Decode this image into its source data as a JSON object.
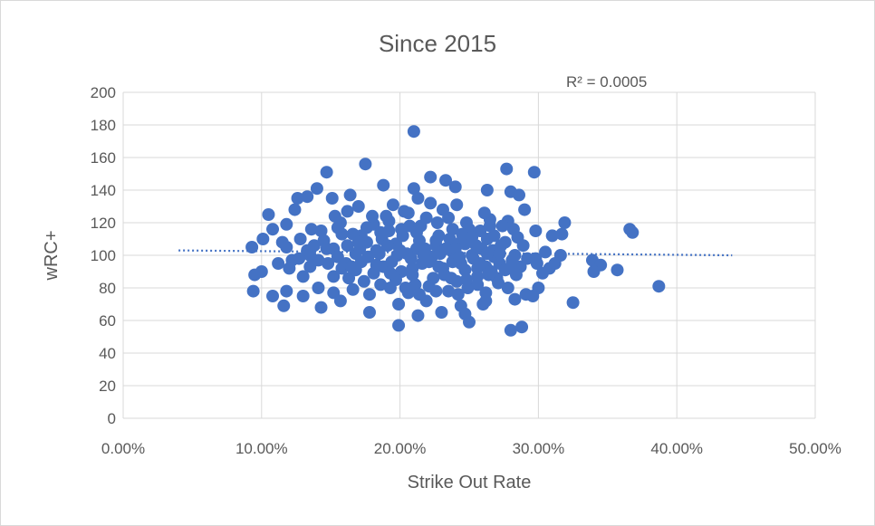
{
  "chart_data": {
    "type": "scatter",
    "title": "Since 2015",
    "xlabel": "Strike Out Rate",
    "ylabel": "wRC+",
    "xlim": [
      0,
      0.5
    ],
    "ylim": [
      0,
      200
    ],
    "x_ticks": [
      0,
      0.1,
      0.2,
      0.3,
      0.4,
      0.5
    ],
    "x_tick_labels": [
      "0.00%",
      "10.00%",
      "20.00%",
      "30.00%",
      "40.00%",
      "50.00%"
    ],
    "y_ticks": [
      0,
      20,
      40,
      60,
      80,
      100,
      120,
      140,
      160,
      180,
      200
    ],
    "y_tick_labels": [
      "0",
      "20",
      "40",
      "60",
      "80",
      "100",
      "120",
      "140",
      "160",
      "180",
      "200"
    ],
    "grid": true,
    "legend": "none",
    "color": "#4472c4",
    "annotation": "R² = 0.0005",
    "trendline": {
      "type": "linear",
      "x": [
        0.04,
        0.44
      ],
      "y": [
        103,
        100
      ]
    },
    "series": [
      {
        "points": [
          [
            0.21,
            176
          ],
          [
            0.175,
            156
          ],
          [
            0.147,
            151
          ],
          [
            0.277,
            153
          ],
          [
            0.297,
            151
          ],
          [
            0.222,
            148
          ],
          [
            0.188,
            143
          ],
          [
            0.24,
            142
          ],
          [
            0.21,
            141
          ],
          [
            0.263,
            140
          ],
          [
            0.28,
            139
          ],
          [
            0.14,
            141
          ],
          [
            0.164,
            137
          ],
          [
            0.233,
            146
          ],
          [
            0.286,
            137
          ],
          [
            0.17,
            130
          ],
          [
            0.126,
            135
          ],
          [
            0.151,
            135
          ],
          [
            0.133,
            136
          ],
          [
            0.213,
            135
          ],
          [
            0.162,
            127
          ],
          [
            0.29,
            128
          ],
          [
            0.124,
            128
          ],
          [
            0.153,
            124
          ],
          [
            0.105,
            125
          ],
          [
            0.118,
            119
          ],
          [
            0.136,
            116
          ],
          [
            0.181,
            119
          ],
          [
            0.203,
            127
          ],
          [
            0.319,
            120
          ],
          [
            0.265,
            118
          ],
          [
            0.248,
            120
          ],
          [
            0.108,
            116
          ],
          [
            0.143,
            115
          ],
          [
            0.157,
            120
          ],
          [
            0.172,
            112
          ],
          [
            0.192,
            115
          ],
          [
            0.207,
            118
          ],
          [
            0.228,
            112
          ],
          [
            0.238,
            116
          ],
          [
            0.258,
            115
          ],
          [
            0.282,
            116
          ],
          [
            0.298,
            115
          ],
          [
            0.31,
            112
          ],
          [
            0.317,
            113
          ],
          [
            0.101,
            110
          ],
          [
            0.115,
            108
          ],
          [
            0.128,
            110
          ],
          [
            0.145,
            109
          ],
          [
            0.162,
            106
          ],
          [
            0.176,
            108
          ],
          [
            0.187,
            110
          ],
          [
            0.197,
            107
          ],
          [
            0.214,
            109
          ],
          [
            0.226,
            106
          ],
          [
            0.236,
            110
          ],
          [
            0.247,
            107
          ],
          [
            0.263,
            110
          ],
          [
            0.276,
            108
          ],
          [
            0.285,
            111
          ],
          [
            0.366,
            116
          ],
          [
            0.368,
            114
          ],
          [
            0.093,
            105
          ],
          [
            0.118,
            105
          ],
          [
            0.133,
            103
          ],
          [
            0.152,
            104
          ],
          [
            0.168,
            101
          ],
          [
            0.183,
            103
          ],
          [
            0.198,
            100
          ],
          [
            0.212,
            104
          ],
          [
            0.223,
            99
          ],
          [
            0.238,
            102
          ],
          [
            0.252,
            100
          ],
          [
            0.267,
            103
          ],
          [
            0.283,
            100
          ],
          [
            0.298,
            98
          ],
          [
            0.305,
            102
          ],
          [
            0.316,
            100
          ],
          [
            0.095,
            88
          ],
          [
            0.1,
            90
          ],
          [
            0.112,
            95
          ],
          [
            0.122,
            97
          ],
          [
            0.135,
            93
          ],
          [
            0.148,
            95
          ],
          [
            0.158,
            92
          ],
          [
            0.172,
            96
          ],
          [
            0.188,
            93
          ],
          [
            0.201,
            90
          ],
          [
            0.216,
            95
          ],
          [
            0.231,
            92
          ],
          [
            0.244,
            95
          ],
          [
            0.256,
            92
          ],
          [
            0.272,
            95
          ],
          [
            0.287,
            93
          ],
          [
            0.299,
            95
          ],
          [
            0.308,
            92
          ],
          [
            0.339,
            97
          ],
          [
            0.345,
            94
          ],
          [
            0.357,
            91
          ],
          [
            0.34,
            90
          ],
          [
            0.094,
            78
          ],
          [
            0.108,
            75
          ],
          [
            0.118,
            78
          ],
          [
            0.13,
            75
          ],
          [
            0.141,
            80
          ],
          [
            0.152,
            77
          ],
          [
            0.166,
            79
          ],
          [
            0.178,
            76
          ],
          [
            0.193,
            80
          ],
          [
            0.206,
            77
          ],
          [
            0.221,
            81
          ],
          [
            0.235,
            78
          ],
          [
            0.249,
            80
          ],
          [
            0.262,
            77
          ],
          [
            0.278,
            80
          ],
          [
            0.291,
            76
          ],
          [
            0.3,
            80
          ],
          [
            0.387,
            81
          ],
          [
            0.116,
            69
          ],
          [
            0.143,
            68
          ],
          [
            0.157,
            72
          ],
          [
            0.178,
            65
          ],
          [
            0.199,
            70
          ],
          [
            0.219,
            72
          ],
          [
            0.244,
            69
          ],
          [
            0.26,
            70
          ],
          [
            0.283,
            73
          ],
          [
            0.296,
            75
          ],
          [
            0.325,
            71
          ],
          [
            0.199,
            57
          ],
          [
            0.23,
            65
          ],
          [
            0.25,
            59
          ],
          [
            0.262,
            72
          ],
          [
            0.28,
            54
          ],
          [
            0.288,
            56
          ],
          [
            0.213,
            63
          ],
          [
            0.247,
            64
          ],
          [
            0.135,
            100
          ],
          [
            0.141,
            97
          ],
          [
            0.147,
            104
          ],
          [
            0.155,
            99
          ],
          [
            0.161,
            95
          ],
          [
            0.166,
            113
          ],
          [
            0.171,
            104
          ],
          [
            0.177,
            99
          ],
          [
            0.183,
            94
          ],
          [
            0.186,
            114
          ],
          [
            0.191,
            106
          ],
          [
            0.194,
            96
          ],
          [
            0.197,
            85
          ],
          [
            0.202,
            112
          ],
          [
            0.205,
            101
          ],
          [
            0.209,
            92
          ],
          [
            0.211,
            82
          ],
          [
            0.215,
            118
          ],
          [
            0.218,
            104
          ],
          [
            0.221,
            96
          ],
          [
            0.224,
            86
          ],
          [
            0.227,
            120
          ],
          [
            0.229,
            101
          ],
          [
            0.232,
            88
          ],
          [
            0.235,
            123
          ],
          [
            0.238,
            96
          ],
          [
            0.241,
            84
          ],
          [
            0.244,
            108
          ],
          [
            0.247,
            91
          ],
          [
            0.25,
            116
          ],
          [
            0.253,
            98
          ],
          [
            0.256,
            87
          ],
          [
            0.259,
            104
          ],
          [
            0.262,
            93
          ],
          [
            0.265,
            122
          ],
          [
            0.268,
            99
          ],
          [
            0.27,
            86
          ],
          [
            0.273,
            106
          ],
          [
            0.276,
            91
          ],
          [
            0.278,
            121
          ],
          [
            0.281,
            97
          ],
          [
            0.284,
            88
          ],
          [
            0.19,
            124
          ],
          [
            0.195,
            131
          ],
          [
            0.206,
            126
          ],
          [
            0.219,
            123
          ],
          [
            0.222,
            132
          ],
          [
            0.231,
            128
          ],
          [
            0.241,
            131
          ],
          [
            0.181,
            89
          ],
          [
            0.186,
            82
          ],
          [
            0.204,
            80
          ],
          [
            0.209,
            88
          ],
          [
            0.226,
            78
          ],
          [
            0.237,
            86
          ],
          [
            0.242,
            76
          ],
          [
            0.256,
            82
          ],
          [
            0.264,
            88
          ],
          [
            0.271,
            83
          ],
          [
            0.163,
            86
          ],
          [
            0.168,
            91
          ],
          [
            0.174,
            84
          ],
          [
            0.185,
            101
          ],
          [
            0.2,
            103
          ],
          [
            0.217,
            100
          ],
          [
            0.226,
            109
          ],
          [
            0.24,
            104
          ],
          [
            0.255,
            106
          ],
          [
            0.268,
            112
          ],
          [
            0.158,
            113
          ],
          [
            0.176,
            117
          ],
          [
            0.192,
            121
          ],
          [
            0.212,
            114
          ],
          [
            0.245,
            113
          ],
          [
            0.261,
            126
          ],
          [
            0.274,
            118
          ],
          [
            0.12,
            92
          ],
          [
            0.127,
            98
          ],
          [
            0.13,
            87
          ],
          [
            0.138,
            106
          ],
          [
            0.152,
            87
          ],
          [
            0.155,
            117
          ],
          [
            0.165,
            93
          ],
          [
            0.17,
            108
          ],
          [
            0.18,
            124
          ],
          [
            0.193,
            89
          ],
          [
            0.201,
            116
          ],
          [
            0.208,
            98
          ],
          [
            0.214,
            76
          ],
          [
            0.228,
            93
          ],
          [
            0.233,
            104
          ],
          [
            0.243,
            99
          ],
          [
            0.248,
            85
          ],
          [
            0.252,
            111
          ],
          [
            0.258,
            95
          ],
          [
            0.263,
            101
          ],
          [
            0.266,
            90
          ],
          [
            0.272,
            101
          ],
          [
            0.279,
            92
          ],
          [
            0.289,
            106
          ],
          [
            0.292,
            98
          ],
          [
            0.303,
            89
          ],
          [
            0.312,
            95
          ]
        ]
      }
    ]
  }
}
